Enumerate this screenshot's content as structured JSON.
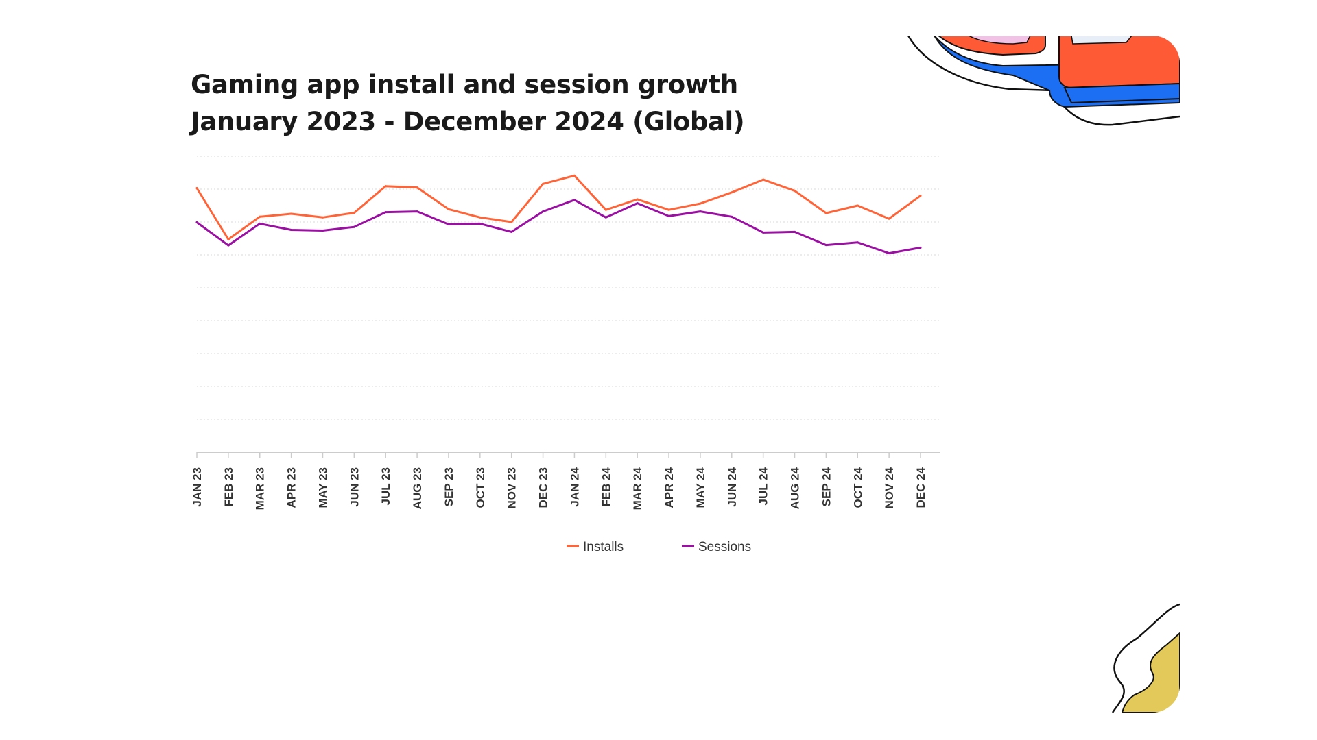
{
  "title": {
    "line1": "Gaming app install and session growth",
    "line2": "January 2023 - December 2024 (Global)"
  },
  "colors": {
    "installs": "#ff6438",
    "sessions": "#9b0fa3",
    "grid": "#d9d9d9",
    "axis": "#cccccc",
    "deco_orange": "#ff5a36",
    "deco_blue": "#1c6ef2",
    "deco_pink": "#f2c1e6",
    "deco_star": "#e2c95a"
  },
  "chart_data": {
    "type": "line",
    "title": "Gaming app install and session growth January 2023 - December 2024 (Global)",
    "xlabel": "",
    "ylabel": "",
    "ylim": [
      0,
      9
    ],
    "grid": true,
    "y_tick_labels_visible": false,
    "legend_position": "bottom-center",
    "categories": [
      "JAN 23",
      "FEB 23",
      "MAR 23",
      "APR 23",
      "MAY 23",
      "JUN 23",
      "JUL 23",
      "AUG 23",
      "SEP 23",
      "OCT 23",
      "NOV 23",
      "DEC 23",
      "JAN 24",
      "FEB 24",
      "MAR 24",
      "APR 24",
      "MAY 24",
      "JUN 24",
      "JUL 24",
      "AUG 24",
      "SEP 24",
      "OCT 24",
      "NOV 24",
      "DEC 24"
    ],
    "series": [
      {
        "name": "Installs",
        "color": "#ff6438",
        "values": [
          8.03,
          6.47,
          7.16,
          7.25,
          7.14,
          7.28,
          8.09,
          8.05,
          7.39,
          7.14,
          7.0,
          8.16,
          8.41,
          7.37,
          7.69,
          7.37,
          7.56,
          7.9,
          8.29,
          7.95,
          7.27,
          7.5,
          7.1,
          7.8
        ]
      },
      {
        "name": "Sessions",
        "color": "#9b0fa3",
        "values": [
          6.99,
          6.29,
          6.95,
          6.76,
          6.74,
          6.85,
          7.3,
          7.32,
          6.93,
          6.95,
          6.7,
          7.32,
          7.67,
          7.14,
          7.57,
          7.18,
          7.32,
          7.16,
          6.68,
          6.7,
          6.3,
          6.38,
          6.05,
          6.22
        ]
      }
    ]
  }
}
